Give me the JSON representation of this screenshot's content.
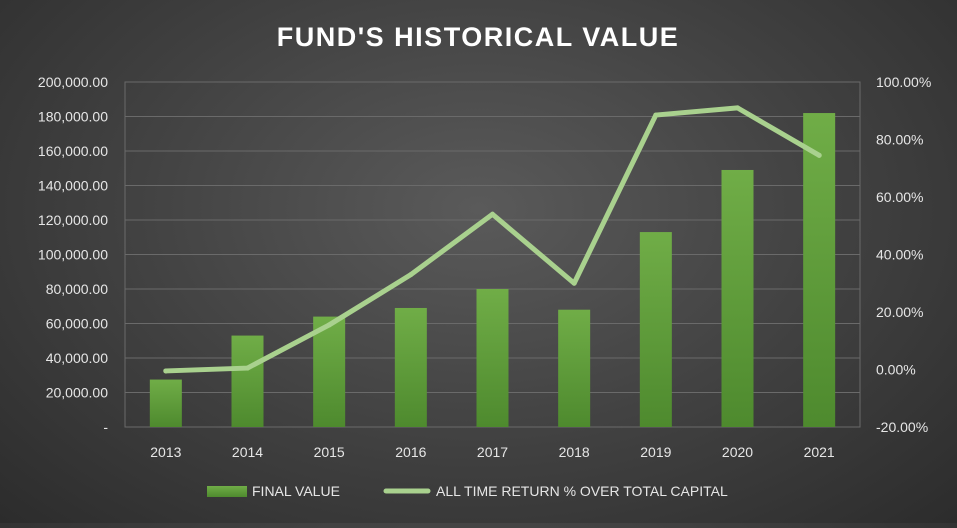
{
  "chart_data": {
    "type": "bar",
    "title": "FUND'S HISTORICAL VALUE",
    "categories": [
      "2013",
      "2014",
      "2015",
      "2016",
      "2017",
      "2018",
      "2019",
      "2020",
      "2021"
    ],
    "series": [
      {
        "name": "FINAL VALUE",
        "type": "bar",
        "axis": "left",
        "values": [
          27500,
          53000,
          64000,
          69000,
          80000,
          68000,
          113000,
          149000,
          182000
        ],
        "color": "#5e9e3b"
      },
      {
        "name": "ALL TIME RETURN % OVER TOTAL CAPITAL",
        "type": "line",
        "axis": "right",
        "values": [
          -0.5,
          0.5,
          15.5,
          33.0,
          54.0,
          30.0,
          88.5,
          91.0,
          74.5
        ],
        "color": "#a9d18e"
      }
    ],
    "y_left": {
      "ylim": [
        0,
        200000
      ],
      "ticks": [
        "-",
        "20,000.00",
        "40,000.00",
        "60,000.00",
        "80,000.00",
        "100,000.00",
        "120,000.00",
        "140,000.00",
        "160,000.00",
        "180,000.00",
        "200,000.00"
      ]
    },
    "y_right": {
      "ylim": [
        -20,
        100
      ],
      "ticks": [
        "-20.00%",
        "0.00%",
        "20.00%",
        "40.00%",
        "60.00%",
        "80.00%",
        "100.00%"
      ]
    },
    "grid": true,
    "legend": "bottom"
  }
}
